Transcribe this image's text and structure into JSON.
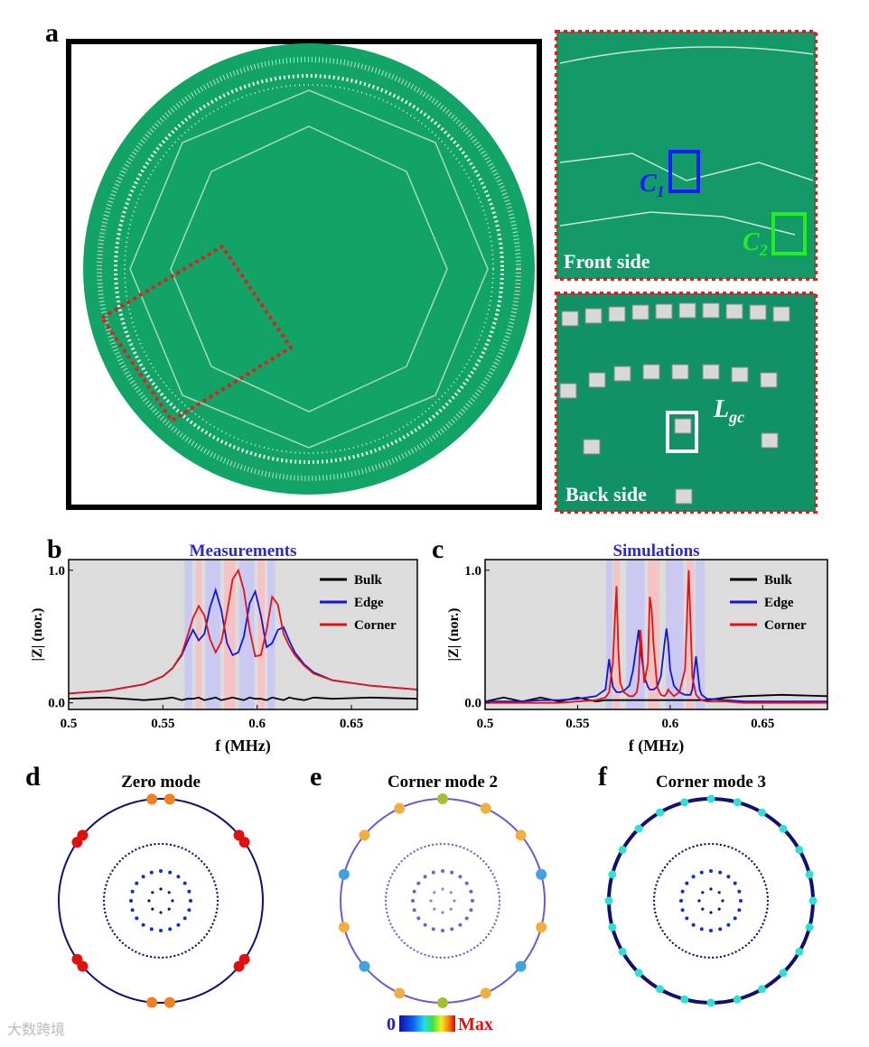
{
  "panel_a": {
    "label": "a",
    "front": "Front side",
    "back": "Back side",
    "c1": {
      "base": "C",
      "sub": "1"
    },
    "c2": {
      "base": "C",
      "sub": "2"
    },
    "lgc": {
      "base": "L",
      "sub": "gc"
    }
  },
  "chart_data": [
    {
      "type": "line",
      "panel_label": "b",
      "title": "Measurements",
      "xlabel": "f (MHz)",
      "ylabel": "|Z| (nor.)",
      "xlim": [
        0.5,
        0.685
      ],
      "ylim": [
        -0.05,
        1.08
      ],
      "xticks": [
        0.5,
        0.55,
        0.6,
        0.65
      ],
      "yticks": [
        {
          "value": 0,
          "label": "0.0"
        },
        {
          "value": 1,
          "label": "1.0"
        }
      ],
      "legend": "upper right",
      "bands": [
        {
          "from": 0.5615,
          "to": 0.5655,
          "color": "#c9c9f2"
        },
        {
          "from": 0.5675,
          "to": 0.5705,
          "color": "#f5c3c3"
        },
        {
          "from": 0.5725,
          "to": 0.5805,
          "color": "#c9c9f2"
        },
        {
          "from": 0.5825,
          "to": 0.5885,
          "color": "#f5c3c3"
        },
        {
          "from": 0.5905,
          "to": 0.5985,
          "color": "#c9c9f2"
        },
        {
          "from": 0.6005,
          "to": 0.604,
          "color": "#f5c3c3"
        },
        {
          "from": 0.6055,
          "to": 0.6095,
          "color": "#c9c9f2"
        }
      ],
      "x": [
        0.5,
        0.52,
        0.54,
        0.55,
        0.555,
        0.56,
        0.563,
        0.566,
        0.569,
        0.572,
        0.575,
        0.578,
        0.581,
        0.584,
        0.587,
        0.59,
        0.593,
        0.596,
        0.599,
        0.602,
        0.605,
        0.608,
        0.611,
        0.614,
        0.617,
        0.62,
        0.625,
        0.63,
        0.64,
        0.66,
        0.685
      ],
      "series": [
        {
          "name": "Bulk",
          "color": "#000000",
          "values": [
            0.03,
            0.04,
            0.02,
            0.03,
            0.04,
            0.02,
            0.03,
            0.03,
            0.04,
            0.02,
            0.03,
            0.04,
            0.02,
            0.03,
            0.04,
            0.03,
            0.02,
            0.04,
            0.03,
            0.03,
            0.02,
            0.04,
            0.03,
            0.02,
            0.04,
            0.03,
            0.02,
            0.04,
            0.03,
            0.04,
            0.03
          ]
        },
        {
          "name": "Edge",
          "color": "#1414d8",
          "values": [
            0.07,
            0.09,
            0.14,
            0.2,
            0.26,
            0.36,
            0.46,
            0.55,
            0.47,
            0.52,
            0.72,
            0.85,
            0.7,
            0.45,
            0.36,
            0.38,
            0.5,
            0.75,
            0.84,
            0.66,
            0.42,
            0.45,
            0.55,
            0.57,
            0.47,
            0.38,
            0.29,
            0.23,
            0.17,
            0.13,
            0.1
          ]
        },
        {
          "name": "Corner",
          "color": "#e01414",
          "values": [
            0.07,
            0.09,
            0.14,
            0.2,
            0.26,
            0.37,
            0.5,
            0.64,
            0.73,
            0.66,
            0.48,
            0.38,
            0.46,
            0.68,
            0.93,
            1.0,
            0.85,
            0.55,
            0.35,
            0.36,
            0.55,
            0.8,
            0.74,
            0.52,
            0.43,
            0.36,
            0.28,
            0.22,
            0.17,
            0.13,
            0.1
          ]
        }
      ]
    },
    {
      "type": "line",
      "panel_label": "c",
      "title": "Simulations",
      "xlabel": "f (MHz)",
      "ylabel": "|Z| (nor.)",
      "xlim": [
        0.5,
        0.685
      ],
      "ylim": [
        -0.05,
        1.08
      ],
      "xticks": [
        0.5,
        0.55,
        0.6,
        0.65
      ],
      "yticks": [
        {
          "value": 0,
          "label": "0.0"
        },
        {
          "value": 1,
          "label": "1.0"
        }
      ],
      "legend": "upper right",
      "bands": [
        {
          "from": 0.5653,
          "to": 0.5688,
          "color": "#c9c9f2"
        },
        {
          "from": 0.5693,
          "to": 0.5728,
          "color": "#f5c3c3"
        },
        {
          "from": 0.5763,
          "to": 0.5862,
          "color": "#c9c9f2"
        },
        {
          "from": 0.5882,
          "to": 0.5942,
          "color": "#f5c3c3"
        },
        {
          "from": 0.5977,
          "to": 0.6072,
          "color": "#c9c9f2"
        },
        {
          "from": 0.6087,
          "to": 0.6127,
          "color": "#f5c3c3"
        },
        {
          "from": 0.6137,
          "to": 0.6187,
          "color": "#c9c9f2"
        }
      ],
      "x": [
        0.5,
        0.51,
        0.52,
        0.53,
        0.54,
        0.55,
        0.56,
        0.565,
        0.567,
        0.569,
        0.571,
        0.572,
        0.573,
        0.575,
        0.578,
        0.58,
        0.582,
        0.583,
        0.584,
        0.586,
        0.588,
        0.589,
        0.59,
        0.591,
        0.593,
        0.595,
        0.597,
        0.598,
        0.599,
        0.6,
        0.602,
        0.605,
        0.608,
        0.609,
        0.61,
        0.611,
        0.612,
        0.614,
        0.616,
        0.617,
        0.62,
        0.63,
        0.64,
        0.66,
        0.685
      ],
      "series": [
        {
          "name": "Bulk",
          "color": "#000000",
          "values": [
            0.01,
            0.04,
            0.01,
            0.04,
            0.01,
            0.04,
            0.01,
            0.02,
            0.02,
            0.02,
            0.02,
            0.02,
            0.02,
            0.02,
            0.02,
            0.02,
            0.02,
            0.02,
            0.02,
            0.02,
            0.02,
            0.02,
            0.02,
            0.02,
            0.02,
            0.02,
            0.02,
            0.02,
            0.02,
            0.02,
            0.02,
            0.02,
            0.02,
            0.02,
            0.02,
            0.02,
            0.02,
            0.02,
            0.02,
            0.02,
            0.02,
            0.04,
            0.05,
            0.06,
            0.05
          ]
        },
        {
          "name": "Edge",
          "color": "#1414d8",
          "values": [
            0.01,
            0.01,
            0.01,
            0.02,
            0.02,
            0.03,
            0.05,
            0.1,
            0.33,
            0.12,
            0.08,
            0.08,
            0.08,
            0.09,
            0.13,
            0.25,
            0.45,
            0.55,
            0.4,
            0.2,
            0.12,
            0.1,
            0.1,
            0.1,
            0.12,
            0.2,
            0.45,
            0.56,
            0.45,
            0.25,
            0.13,
            0.08,
            0.06,
            0.06,
            0.06,
            0.06,
            0.1,
            0.35,
            0.1,
            0.06,
            0.03,
            0.02,
            0.01,
            0.01,
            0.01
          ]
        },
        {
          "name": "Corner",
          "color": "#e01414",
          "values": [
            0,
            0,
            0,
            0,
            0,
            0.01,
            0.02,
            0.04,
            0.08,
            0.3,
            0.88,
            0.4,
            0.15,
            0.08,
            0.05,
            0.05,
            0.08,
            0.18,
            0.55,
            0.15,
            0.3,
            0.8,
            0.7,
            0.45,
            0.12,
            0.06,
            0.05,
            0.07,
            0.1,
            0.08,
            0.05,
            0.08,
            0.25,
            0.6,
            1.0,
            0.6,
            0.2,
            0.06,
            0.03,
            0.02,
            0.01,
            0.01,
            0,
            0,
            0
          ]
        }
      ]
    }
  ],
  "modes": [
    {
      "label": "d",
      "title": "Zero mode"
    },
    {
      "label": "e",
      "title": "Corner mode 2"
    },
    {
      "label": "f",
      "title": "Corner mode 3"
    }
  ],
  "colorbar": {
    "min": "0",
    "max": "Max"
  },
  "watermark": "大数跨境"
}
